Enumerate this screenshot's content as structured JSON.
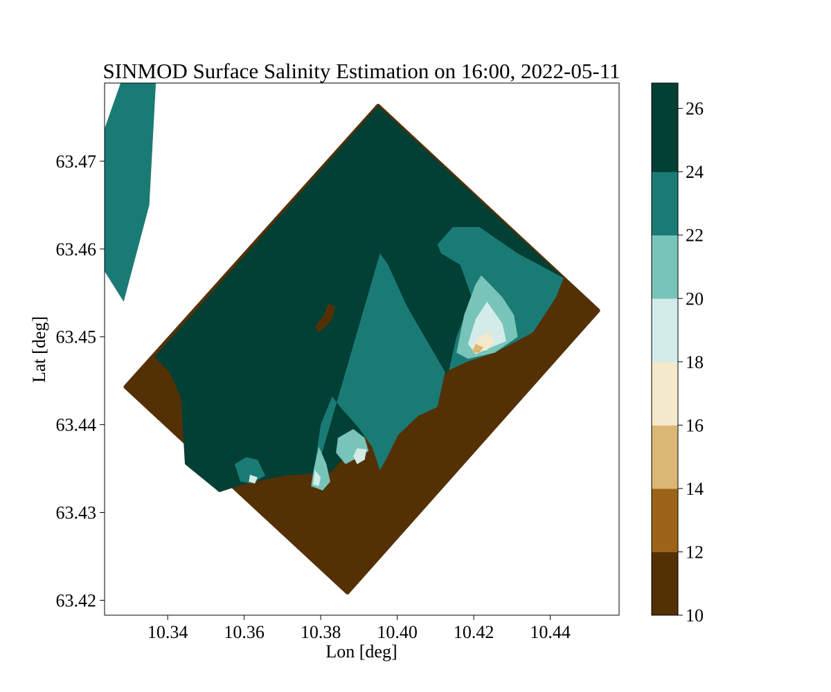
{
  "chart_data": {
    "type": "heatmap",
    "subtype": "filled-contour",
    "title": "SINMOD Surface Salinity Estimation on 16:00, 2022-05-11",
    "xlabel": "Lon [deg]",
    "ylabel": "Lat [deg]",
    "xlim": [
      10.3235,
      10.458
    ],
    "ylim": [
      63.4183,
      63.4789
    ],
    "xticks": [
      10.34,
      10.36,
      10.38,
      10.4,
      10.42,
      10.44
    ],
    "xtick_labels": [
      "10.34",
      "10.36",
      "10.38",
      "10.40",
      "10.42",
      "10.44"
    ],
    "yticks": [
      63.42,
      63.43,
      63.44,
      63.45,
      63.46,
      63.47
    ],
    "ytick_labels": [
      "63.42",
      "63.43",
      "63.44",
      "63.45",
      "63.46",
      "63.47"
    ],
    "domain_corners": [
      [
        10.395,
        63.4763
      ],
      [
        10.4525,
        63.453
      ],
      [
        10.387,
        63.4209
      ],
      [
        10.329,
        63.4443
      ]
    ],
    "colorbar": {
      "levels": [
        10,
        12,
        14,
        16,
        18,
        20,
        22,
        24,
        26,
        26.8
      ],
      "colors": [
        "#543005",
        "#9c6418",
        "#dab774",
        "#f5e9cc",
        "#d3ece9",
        "#78c4b9",
        "#1a7b75",
        "#023f35",
        "#023f35"
      ],
      "ticks": [
        10,
        12,
        14,
        16,
        18,
        20,
        22,
        24,
        26
      ],
      "tick_labels": [
        "10",
        "12",
        "14",
        "16",
        "18",
        "20",
        "22",
        "24",
        "26"
      ]
    },
    "regions": [
      {
        "name": "high-salinity water",
        "range": [
          24,
          26.8
        ],
        "level": 26,
        "points": [
          [
            10.395,
            63.4763
          ],
          [
            10.4435,
            63.4567
          ],
          [
            10.4415,
            63.4545
          ],
          [
            10.4355,
            63.4505
          ],
          [
            10.42,
            63.448
          ],
          [
            10.4135,
            63.4462
          ],
          [
            10.4055,
            63.4423
          ],
          [
            10.4005,
            63.4432
          ],
          [
            10.3985,
            63.441
          ],
          [
            10.3905,
            63.4383
          ],
          [
            10.3825,
            63.4345
          ],
          [
            10.3705,
            63.4342
          ],
          [
            10.3605,
            63.4333
          ],
          [
            10.3535,
            63.4323
          ],
          [
            10.3445,
            63.4355
          ],
          [
            10.3435,
            63.443
          ],
          [
            10.3405,
            63.446
          ],
          [
            10.3365,
            63.4477
          ]
        ]
      },
      {
        "name": "channel-fresh-zone",
        "range": [
          22,
          24
        ],
        "level": 23,
        "points": [
          [
            10.3285,
            63.454
          ],
          [
            10.3165,
            63.4623
          ],
          [
            10.3205,
            63.47
          ],
          [
            10.3318,
            63.484
          ],
          [
            10.3373,
            63.482
          ],
          [
            10.3352,
            63.465
          ]
        ]
      },
      {
        "name": "west-fan",
        "range": [
          22,
          24
        ],
        "level": 23,
        "points": [
          [
            10.3955,
            63.4595
          ],
          [
            10.3975,
            63.4583
          ],
          [
            10.4025,
            63.4535
          ],
          [
            10.4125,
            63.446
          ],
          [
            10.4105,
            63.442
          ],
          [
            10.4055,
            63.441
          ],
          [
            10.4002,
            63.4388
          ],
          [
            10.3968,
            63.4358
          ],
          [
            10.3955,
            63.4348
          ],
          [
            10.3935,
            63.4374
          ],
          [
            10.3898,
            63.4397
          ],
          [
            10.3855,
            63.4418
          ],
          [
            10.383,
            63.4432
          ],
          [
            10.38,
            63.44
          ],
          [
            10.3775,
            63.4325
          ],
          [
            10.3765,
            63.431
          ]
        ]
      },
      {
        "name": "east-plume-outer",
        "range": [
          22,
          24
        ],
        "level": 23,
        "points": [
          [
            10.4105,
            63.4605
          ],
          [
            10.4145,
            63.4625
          ],
          [
            10.4215,
            63.4625
          ],
          [
            10.4315,
            63.4595
          ],
          [
            10.4435,
            63.4567
          ],
          [
            10.4415,
            63.4545
          ],
          [
            10.4355,
            63.4505
          ],
          [
            10.4255,
            63.4482
          ],
          [
            10.4185,
            63.4472
          ],
          [
            10.4135,
            63.4462
          ],
          [
            10.4155,
            63.45
          ],
          [
            10.4195,
            63.4545
          ],
          [
            10.4165,
            63.4582
          ],
          [
            10.4115,
            63.4595
          ]
        ]
      },
      {
        "name": "east-plume-mid",
        "range": [
          20,
          22
        ],
        "level": 21,
        "points": [
          [
            10.422,
            63.457
          ],
          [
            10.4275,
            63.4545
          ],
          [
            10.4305,
            63.4525
          ],
          [
            10.4315,
            63.45
          ],
          [
            10.4255,
            63.4482
          ],
          [
            10.4185,
            63.4475
          ],
          [
            10.4155,
            63.4482
          ],
          [
            10.4175,
            63.4525
          ],
          [
            10.4205,
            63.456
          ]
        ]
      },
      {
        "name": "east-plume-inner",
        "range": [
          18,
          20
        ],
        "level": 19,
        "points": [
          [
            10.4235,
            63.454
          ],
          [
            10.4275,
            63.4515
          ],
          [
            10.4285,
            63.4495
          ],
          [
            10.4245,
            63.4488
          ],
          [
            10.4205,
            63.448
          ],
          [
            10.4185,
            63.4492
          ],
          [
            10.4205,
            63.452
          ]
        ]
      },
      {
        "name": "east-plume-core",
        "range": [
          16,
          18
        ],
        "level": 17,
        "points": [
          [
            10.4235,
            63.4505
          ],
          [
            10.4255,
            63.4495
          ],
          [
            10.4235,
            63.4485
          ],
          [
            10.4205,
            63.4482
          ],
          [
            10.4195,
            63.449
          ],
          [
            10.4215,
            63.45
          ]
        ]
      },
      {
        "name": "east-plume-edge",
        "range": [
          12,
          16
        ],
        "level": 15,
        "points": [
          [
            10.4205,
            63.4492
          ],
          [
            10.4225,
            63.4488
          ],
          [
            10.4215,
            63.4482
          ],
          [
            10.4195,
            63.4482
          ]
        ]
      },
      {
        "name": "mid-fan-outer",
        "range": [
          20,
          22
        ],
        "level": 21,
        "points": [
          [
            10.3845,
            63.4385
          ],
          [
            10.3885,
            63.4395
          ],
          [
            10.3915,
            63.4385
          ],
          [
            10.3925,
            63.437
          ],
          [
            10.3895,
            63.4362
          ],
          [
            10.3865,
            63.4355
          ],
          [
            10.384,
            63.4368
          ]
        ]
      },
      {
        "name": "mid-fan-core",
        "range": [
          16,
          20
        ],
        "level": 18,
        "points": [
          [
            10.3895,
            63.4373
          ],
          [
            10.392,
            63.4372
          ],
          [
            10.3915,
            63.436
          ],
          [
            10.3895,
            63.4355
          ],
          [
            10.3885,
            63.4364
          ]
        ]
      },
      {
        "name": "west-fan-inner",
        "range": [
          20,
          22
        ],
        "level": 21,
        "points": [
          [
            10.3795,
            63.4375
          ],
          [
            10.3815,
            63.4355
          ],
          [
            10.3825,
            63.4335
          ],
          [
            10.3805,
            63.4325
          ],
          [
            10.3775,
            63.433
          ],
          [
            10.3782,
            63.435
          ]
        ]
      },
      {
        "name": "west-fan-core",
        "range": [
          16,
          20
        ],
        "level": 18,
        "points": [
          [
            10.3785,
            63.4348
          ],
          [
            10.38,
            63.434
          ],
          [
            10.3795,
            63.433
          ],
          [
            10.378,
            63.4332
          ]
        ]
      },
      {
        "name": "small-fan",
        "range": [
          22,
          24
        ],
        "level": 23,
        "points": [
          [
            10.3575,
            63.4355
          ],
          [
            10.3605,
            63.4363
          ],
          [
            10.3635,
            63.436
          ],
          [
            10.3655,
            63.4342
          ],
          [
            10.362,
            63.4333
          ],
          [
            10.359,
            63.4335
          ]
        ]
      },
      {
        "name": "small-fan-core",
        "range": [
          16,
          20
        ],
        "level": 18,
        "points": [
          [
            10.3615,
            63.4343
          ],
          [
            10.3635,
            63.434
          ],
          [
            10.3628,
            63.4333
          ],
          [
            10.3612,
            63.4335
          ]
        ]
      },
      {
        "name": "island",
        "range": [
          10,
          12
        ],
        "level": 11,
        "points": [
          [
            10.382,
            63.4538
          ],
          [
            10.3838,
            63.4534
          ],
          [
            10.383,
            63.452
          ],
          [
            10.381,
            63.451
          ],
          [
            10.3795,
            63.4505
          ],
          [
            10.3785,
            63.4512
          ],
          [
            10.3805,
            63.4522
          ]
        ]
      }
    ]
  }
}
